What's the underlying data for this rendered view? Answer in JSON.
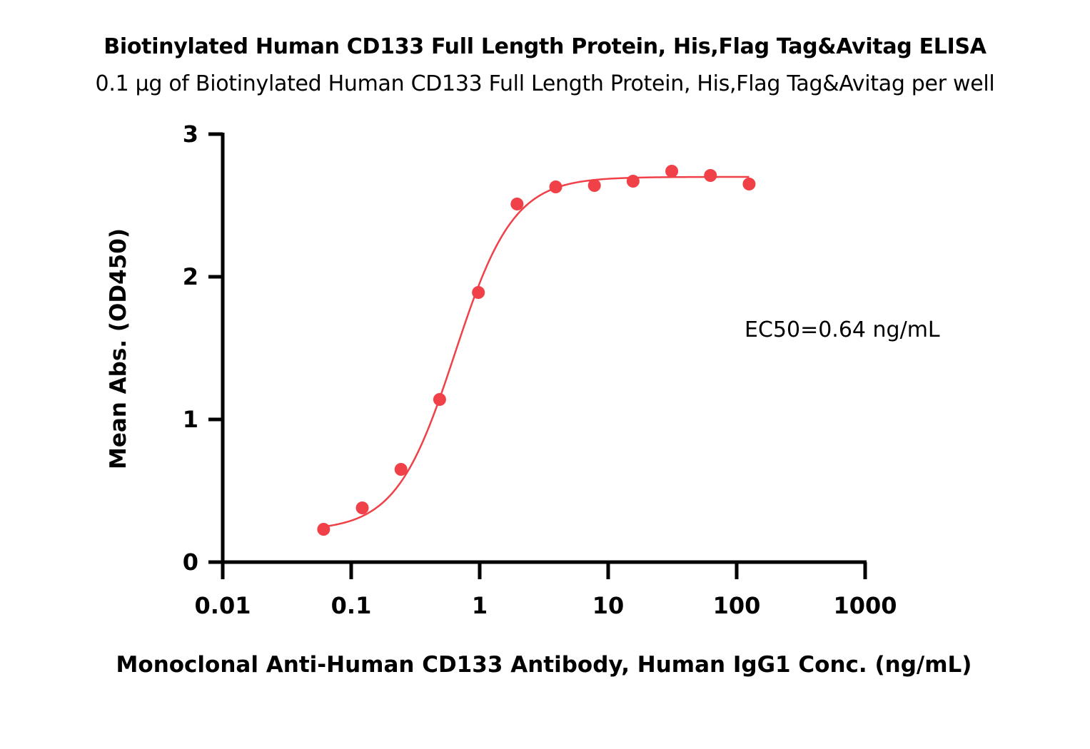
{
  "chart_data": {
    "type": "scatter",
    "title": "Biotinylated Human CD133 Full Length Protein, His,Flag Tag&Avitag ELISA",
    "subtitle": "0.1 μg of Biotinylated Human CD133 Full Length Protein, His,Flag Tag&Avitag per well",
    "xlabel": "Monoclonal Anti-Human CD133 Antibody, Human IgG1 Conc. (ng/mL)",
    "ylabel": "Mean Abs. (OD450)",
    "xscale": "log",
    "xlim": [
      0.01,
      1000
    ],
    "ylim": [
      0,
      3
    ],
    "x_ticks": [
      "0.01",
      "0.1",
      "1",
      "10",
      "100",
      "1000"
    ],
    "y_ticks": [
      "0",
      "1",
      "2",
      "3"
    ],
    "grid": false,
    "series": [
      {
        "color": "#f04048",
        "x": [
          0.061,
          0.122,
          0.244,
          0.488,
          0.977,
          1.953,
          3.906,
          7.813,
          15.625,
          31.25,
          62.5,
          125
        ],
        "y": [
          0.23,
          0.38,
          0.65,
          1.14,
          1.89,
          2.51,
          2.63,
          2.64,
          2.67,
          2.74,
          2.71,
          2.65
        ]
      }
    ],
    "fit_curve": {
      "type": "4PL",
      "bottom": 0.22,
      "top": 2.7,
      "ec50": 0.64,
      "hill": 1.9,
      "color": "#f04048"
    },
    "annotations": [
      "EC50=0.64 ng/mL"
    ]
  }
}
